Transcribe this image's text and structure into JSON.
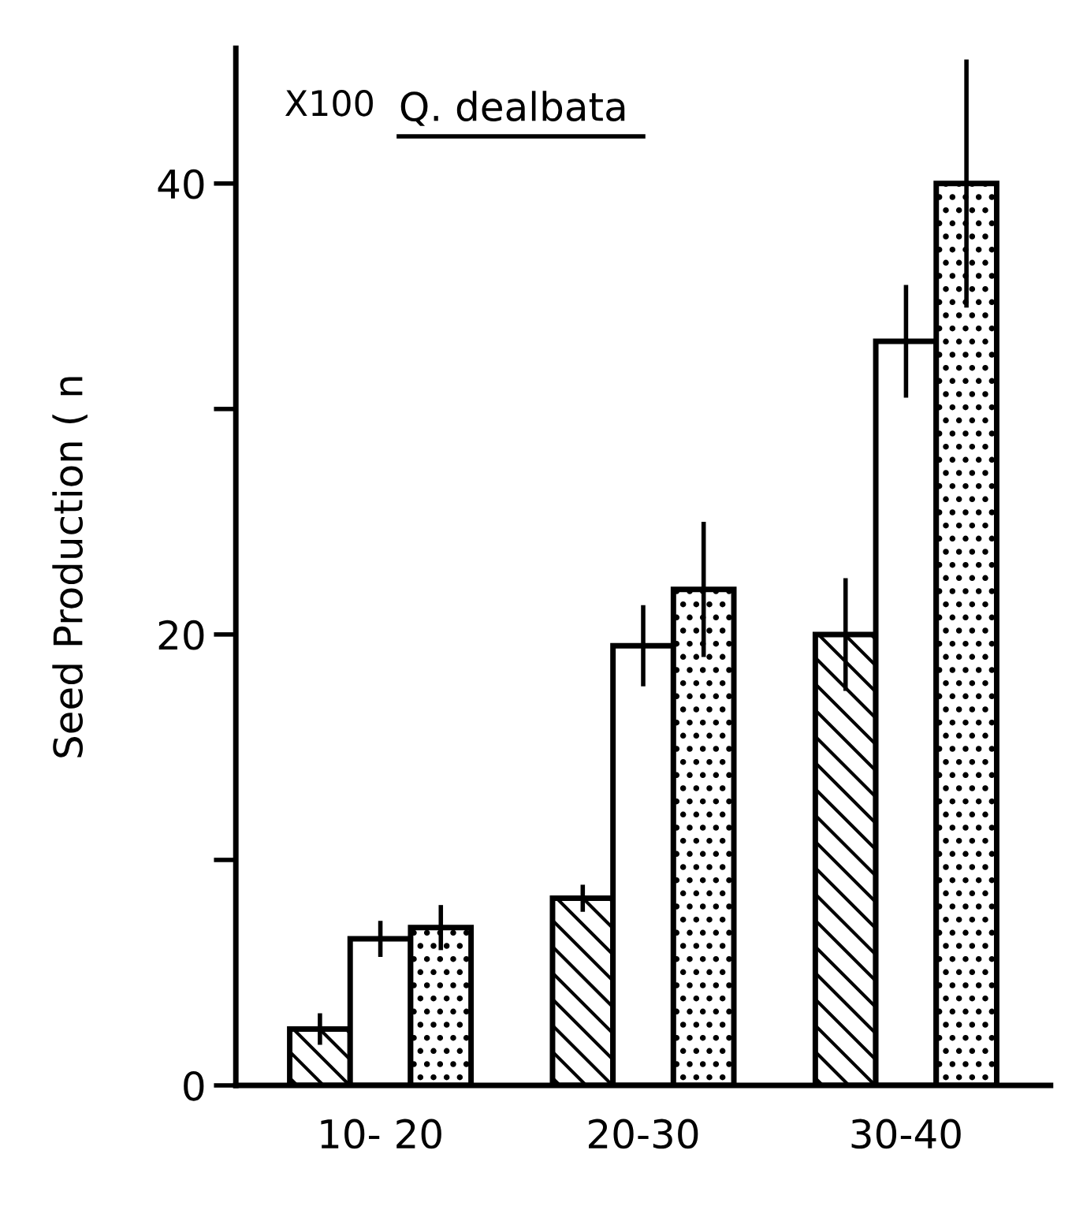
{
  "chart_data": {
    "type": "bar",
    "title": "Q. dealbata",
    "ylabel": "Seed Production ( n",
    "categories": [
      "10- 20",
      "20-30",
      "30-40"
    ],
    "series": [
      {
        "color": "#000000",
        "values": [
          2.5,
          8.3,
          20
        ],
        "errors": [
          0.7,
          0.6,
          2.5
        ]
      },
      {
        "color": "#ffffff",
        "values": [
          6.5,
          19.5,
          33
        ],
        "errors": [
          0.8,
          1.8,
          2.5
        ]
      },
      {
        "color": "#000000",
        "values": [
          7,
          22,
          40
        ],
        "errors": [
          1.0,
          3,
          5.5
        ]
      }
    ],
    "ylim": [
      0,
      46
    ],
    "yticks": [
      0,
      {
        "value": 10,
        "label": null
      },
      20,
      {
        "value": 30,
        "label": null
      },
      40
    ],
    "annotations": [
      "X100"
    ],
    "grid": false,
    "legend": false
  }
}
